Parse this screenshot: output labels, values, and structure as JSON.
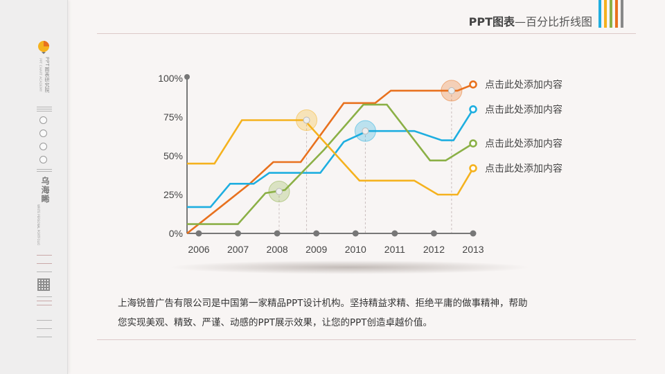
{
  "header": {
    "title_bold": "PPT图表",
    "title_rest": "—百分比折线图",
    "accent_colors": [
      "#1eaee0",
      "#f5b21e",
      "#8bb046",
      "#e8711e",
      "#888888"
    ]
  },
  "sidebar": {
    "vertical_title": "PPT图表研究院",
    "vertical_subtitle": "PPT CHART ACADEMY",
    "author_name": "乌海睎",
    "author_subtitle": "WRITE PERSONAL PORTFOLIO"
  },
  "chart_data": {
    "type": "line",
    "categories": [
      "2006",
      "2007",
      "2008",
      "2009",
      "2010",
      "2011",
      "2012",
      "2013"
    ],
    "y_ticks": [
      "0%",
      "25%",
      "50%",
      "75%",
      "100%"
    ],
    "ylim": [
      0,
      100
    ],
    "grid": false,
    "legend": "right",
    "series": [
      {
        "name": "点击此处添加内容",
        "color": "#e8711e",
        "points": [
          [
            2005.7,
            0
          ],
          [
            2006.5,
            16
          ],
          [
            2007.3,
            32
          ],
          [
            2007.9,
            46
          ],
          [
            2008.6,
            46
          ],
          [
            2009.7,
            84
          ],
          [
            2010.5,
            84
          ],
          [
            2010.9,
            92
          ],
          [
            2012.1,
            92
          ],
          [
            2012.6,
            92
          ],
          [
            2013,
            96
          ]
        ]
      },
      {
        "name": "点击此处添加内容",
        "color": "#1eaee0",
        "points": [
          [
            2005.7,
            17
          ],
          [
            2006.3,
            17
          ],
          [
            2006.8,
            32
          ],
          [
            2007.4,
            32
          ],
          [
            2007.8,
            39
          ],
          [
            2009.1,
            39
          ],
          [
            2009.7,
            59
          ],
          [
            2010.3,
            66
          ],
          [
            2011.5,
            66
          ],
          [
            2012.2,
            60
          ],
          [
            2012.5,
            60
          ],
          [
            2013,
            80
          ]
        ]
      },
      {
        "name": "点击此处添加内容",
        "color": "#8bb046",
        "points": [
          [
            2005.7,
            6
          ],
          [
            2006.2,
            6
          ],
          [
            2007.0,
            6
          ],
          [
            2007.7,
            26
          ],
          [
            2008.2,
            28
          ],
          [
            2009.2,
            54
          ],
          [
            2010.2,
            83
          ],
          [
            2010.8,
            83
          ],
          [
            2011.9,
            47
          ],
          [
            2012.3,
            47
          ],
          [
            2013,
            58
          ]
        ]
      },
      {
        "name": "点击此处添加内容",
        "color": "#f5b21e",
        "points": [
          [
            2005.7,
            45
          ],
          [
            2006.4,
            45
          ],
          [
            2007.1,
            73
          ],
          [
            2008.1,
            73
          ],
          [
            2008.7,
            73
          ],
          [
            2010.1,
            34
          ],
          [
            2010.9,
            34
          ],
          [
            2011.5,
            34
          ],
          [
            2012.1,
            25
          ],
          [
            2012.6,
            25
          ],
          [
            2013,
            42
          ]
        ]
      }
    ],
    "highlight_points": [
      {
        "x": 2008.05,
        "y": 27,
        "color": "#8bb046"
      },
      {
        "x": 2008.75,
        "y": 73,
        "color": "#f5b21e"
      },
      {
        "x": 2010.25,
        "y": 66,
        "color": "#1eaee0"
      },
      {
        "x": 2012.45,
        "y": 92,
        "color": "#e8711e"
      }
    ],
    "legend_labels": [
      "点击此处添加内容",
      "点击此处添加内容",
      "点击此处添加内容",
      "点击此处添加内容"
    ]
  },
  "description": {
    "line1": "上海锐普广告有限公司是中国第一家精品PPT设计机构。坚持精益求精、拒绝平庸的做事精神，帮助",
    "line2": "您实现美观、精致、严谨、动感的PPT展示效果，让您的PPT创造卓越价值。"
  }
}
